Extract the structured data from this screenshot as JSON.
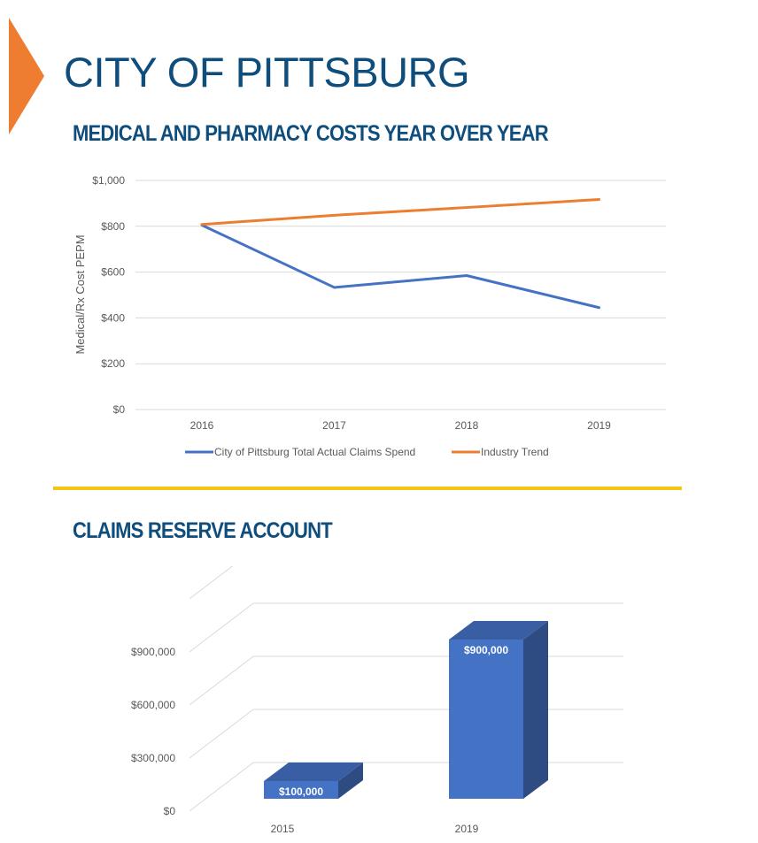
{
  "header": {
    "title": "CITY OF PITTSBURG",
    "accent_color": "#ee7d31",
    "title_color": "#0e4d7c",
    "divider_color": "#f5c518"
  },
  "sections": {
    "line_heading": "MEDICAL AND PHARMACY COSTS YEAR OVER YEAR",
    "bar_heading": "CLAIMS RESERVE ACCOUNT"
  },
  "chart_data": [
    {
      "type": "line",
      "x": [
        "2016",
        "2017",
        "2018",
        "2019"
      ],
      "series": [
        {
          "name": "City of Pittsburg Total Actual Claims Spend",
          "color": "#4472c4",
          "values": [
            805,
            533,
            585,
            445
          ]
        },
        {
          "name": "Industry Trend",
          "color": "#ed7d31",
          "values": [
            808,
            848,
            882,
            917
          ]
        }
      ],
      "ylabel": "Medical/Rx Cost PEPM",
      "xlabel": "",
      "ylim": [
        0,
        1000
      ],
      "yticks": [
        0,
        200,
        400,
        600,
        800,
        1000
      ],
      "ytick_labels": [
        "$0",
        "$200",
        "$400",
        "$600",
        "$800",
        "$1,000"
      ],
      "grid": true,
      "legend": "bottom"
    },
    {
      "type": "bar",
      "style": "3d-column",
      "categories": [
        "2015",
        "2019"
      ],
      "values": [
        100000,
        900000
      ],
      "data_labels": [
        "$100,000",
        "$900,000"
      ],
      "color": "#4472c4",
      "ylim": [
        0,
        1200000
      ],
      "yticks": [
        0,
        300000,
        600000,
        900000
      ],
      "ytick_labels": [
        "$0",
        "$300,000",
        "$600,000",
        "$900,000"
      ],
      "grid": true
    }
  ]
}
